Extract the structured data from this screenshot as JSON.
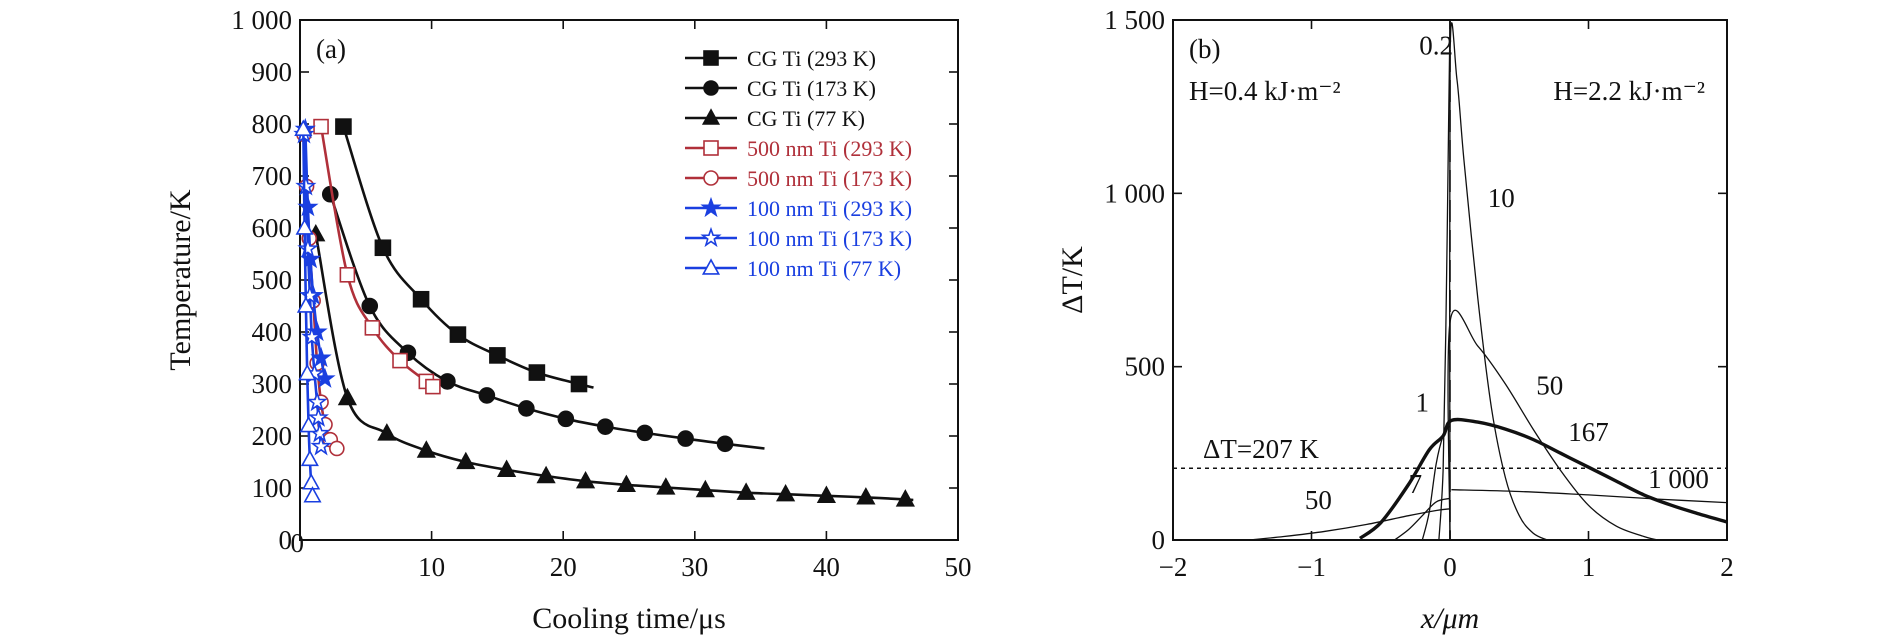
{
  "chart_data": [
    {
      "panel": "(a)",
      "type": "line",
      "xlabel": "Cooling time/μs",
      "ylabel": "Temperature/K",
      "xlim": [
        0,
        50
      ],
      "ylim": [
        0,
        1000
      ],
      "x_ticks": [
        {
          "value": 10,
          "label": "10"
        },
        {
          "value": 20,
          "label": "20"
        },
        {
          "value": 30,
          "label": "30"
        },
        {
          "value": 40,
          "label": "40"
        },
        {
          "value": 50,
          "label": "50"
        }
      ],
      "y_ticks": [
        {
          "value": 0,
          "label": "0"
        },
        {
          "value": 100,
          "label": "100"
        },
        {
          "value": 200,
          "label": "200"
        },
        {
          "value": 300,
          "label": "300"
        },
        {
          "value": 400,
          "label": "400"
        },
        {
          "value": 500,
          "label": "500"
        },
        {
          "value": 600,
          "label": "600"
        },
        {
          "value": 700,
          "label": "700"
        },
        {
          "value": 800,
          "label": "800"
        },
        {
          "value": 900,
          "label": "900"
        },
        {
          "value": 1000,
          "label": "1 000"
        }
      ],
      "legend_position": "top-right",
      "series": [
        {
          "name": "CG Ti (293 K)",
          "color": "#111111",
          "marker": "square",
          "filled": true,
          "points": [
            [
              3.3,
              795
            ],
            [
              6.3,
              562
            ],
            [
              9.2,
              463
            ],
            [
              12,
              395
            ],
            [
              15,
              355
            ],
            [
              18,
              322
            ],
            [
              21.2,
              300
            ],
            [
              22.3,
              293
            ]
          ]
        },
        {
          "name": "CG Ti (173 K)",
          "color": "#111111",
          "marker": "circle",
          "filled": true,
          "points": [
            [
              2.3,
              665
            ],
            [
              5.3,
              450
            ],
            [
              8.2,
              360
            ],
            [
              11.2,
              305
            ],
            [
              14.2,
              278
            ],
            [
              17.2,
              253
            ],
            [
              20.2,
              233
            ],
            [
              23.2,
              218
            ],
            [
              26.2,
              206
            ],
            [
              29.3,
              195
            ],
            [
              32.3,
              185
            ],
            [
              35.3,
              176
            ]
          ]
        },
        {
          "name": "CG Ti (77 K)",
          "color": "#111111",
          "marker": "triangle",
          "filled": true,
          "points": [
            [
              1.2,
              588
            ],
            [
              3.6,
              273
            ],
            [
              6.6,
              205
            ],
            [
              9.6,
              172
            ],
            [
              12.6,
              150
            ],
            [
              15.7,
              135
            ],
            [
              18.7,
              123
            ],
            [
              21.7,
              113
            ],
            [
              24.8,
              106
            ],
            [
              27.8,
              101
            ],
            [
              30.8,
              96
            ],
            [
              33.9,
              91
            ],
            [
              36.9,
              88
            ],
            [
              40,
              85
            ],
            [
              43,
              82
            ],
            [
              46,
              78
            ],
            [
              46.6,
              77
            ]
          ]
        },
        {
          "name": "500 nm Ti (293 K)",
          "color": "#b0303a",
          "marker": "square",
          "filled": false,
          "points": [
            [
              1.6,
              795
            ],
            [
              3.6,
              510
            ],
            [
              5.5,
              408
            ],
            [
              7.6,
              345
            ],
            [
              9.6,
              305
            ],
            [
              10.1,
              295
            ]
          ]
        },
        {
          "name": "500 nm Ti (173 K)",
          "color": "#b0303a",
          "marker": "circle",
          "filled": false,
          "points": [
            [
              0.3,
              780
            ],
            [
              0.5,
              680
            ],
            [
              0.7,
              580
            ],
            [
              1.0,
              460
            ],
            [
              1.3,
              340
            ],
            [
              1.6,
              265
            ],
            [
              1.9,
              222
            ],
            [
              2.3,
              193
            ],
            [
              2.8,
              176
            ]
          ]
        },
        {
          "name": "100 nm Ti (293 K)",
          "color": "#1a3fe0",
          "marker": "star",
          "filled": true,
          "points": [
            [
              0.4,
              790
            ],
            [
              0.6,
              640
            ],
            [
              0.8,
              540
            ],
            [
              1.0,
              470
            ],
            [
              1.3,
              400
            ],
            [
              1.6,
              350
            ],
            [
              1.9,
              310
            ]
          ]
        },
        {
          "name": "100 nm Ti (173 K)",
          "color": "#1a3fe0",
          "marker": "star",
          "filled": false,
          "points": [
            [
              0.3,
              780
            ],
            [
              0.45,
              680
            ],
            [
              0.6,
              560
            ],
            [
              0.75,
              470
            ],
            [
              0.9,
              390
            ],
            [
              1.1,
              320
            ],
            [
              1.3,
              265
            ],
            [
              1.4,
              235
            ],
            [
              1.5,
              205
            ],
            [
              1.6,
              180
            ]
          ]
        },
        {
          "name": "100 nm Ti (77 K)",
          "color": "#1a3fe0",
          "marker": "triangle",
          "filled": false,
          "points": [
            [
              0.25,
              790
            ],
            [
              0.35,
              600
            ],
            [
              0.45,
              450
            ],
            [
              0.55,
              320
            ],
            [
              0.65,
              220
            ],
            [
              0.75,
              155
            ],
            [
              0.85,
              110
            ],
            [
              0.95,
              85
            ]
          ]
        }
      ]
    },
    {
      "panel": "(b)",
      "type": "line",
      "xlabel": "x/μm",
      "ylabel": "ΔT/K",
      "xlim": [
        -2,
        2
      ],
      "ylim": [
        0,
        1500
      ],
      "x_ticks": [
        {
          "value": -2,
          "label": "−2"
        },
        {
          "value": -1,
          "label": "−1"
        },
        {
          "value": 0,
          "label": "0"
        },
        {
          "value": 1,
          "label": "1"
        },
        {
          "value": 2,
          "label": "2"
        }
      ],
      "y_ticks": [
        {
          "value": 0,
          "label": "0"
        },
        {
          "value": 500,
          "label": "500"
        },
        {
          "value": 1000,
          "label": "1 000"
        },
        {
          "value": 1500,
          "label": "1 500"
        }
      ],
      "threshold": {
        "value": 207,
        "label": "ΔT=207 K",
        "style": "dotted"
      },
      "divider_x": 0,
      "annotations_left": [
        "H=0.4 kJ·m⁻²"
      ],
      "annotations_right": [
        "H=2.2 kJ·m⁻²"
      ],
      "curve_labels": [
        {
          "text": "0.2",
          "x": -0.1,
          "y": 1400
        },
        {
          "text": "10",
          "x": 0.37,
          "y": 960
        },
        {
          "text": "50",
          "x": 0.72,
          "y": 420
        },
        {
          "text": "167",
          "x": 1.0,
          "y": 285
        },
        {
          "text": "1 000",
          "x": 1.65,
          "y": 150
        },
        {
          "text": "1",
          "x": -0.2,
          "y": 370
        },
        {
          "text": "7",
          "x": -0.25,
          "y": 135
        },
        {
          "text": "50",
          "x": -0.95,
          "y": 90
        }
      ],
      "series": [
        {
          "name": "0.2 (H=2.2)",
          "color": "#111111",
          "width": 1.3,
          "points": [
            [
              0,
              0
            ],
            [
              0.001,
              1400
            ],
            [
              0.05,
              1330
            ],
            [
              0.1,
              1100
            ],
            [
              0.2,
              700
            ],
            [
              0.3,
              380
            ],
            [
              0.4,
              180
            ],
            [
              0.5,
              70
            ],
            [
              0.6,
              20
            ],
            [
              0.7,
              0
            ]
          ]
        },
        {
          "name": "10 (H=2.2)",
          "color": "#111111",
          "width": 1.3,
          "points": [
            [
              0,
              0
            ],
            [
              0.001,
              630
            ],
            [
              0.2,
              560
            ],
            [
              0.4,
              450
            ],
            [
              0.6,
              320
            ],
            [
              0.8,
              200
            ],
            [
              1.0,
              100
            ],
            [
              1.2,
              40
            ],
            [
              1.4,
              10
            ],
            [
              1.5,
              0
            ]
          ]
        },
        {
          "name": "167 (H=2.2)",
          "color": "#111111",
          "width": 3.4,
          "points": [
            [
              -0.65,
              5
            ],
            [
              -0.5,
              50
            ],
            [
              -0.3,
              160
            ],
            [
              -0.15,
              260
            ],
            [
              -0.05,
              300
            ],
            [
              0.01,
              345
            ],
            [
              0.2,
              340
            ],
            [
              0.4,
              320
            ],
            [
              0.6,
              290
            ],
            [
              0.8,
              250
            ],
            [
              1.0,
              210
            ],
            [
              1.2,
              170
            ],
            [
              1.4,
              130
            ],
            [
              1.6,
              100
            ],
            [
              1.8,
              75
            ],
            [
              2.0,
              52
            ]
          ]
        },
        {
          "name": "1 000 (H=2.2)",
          "color": "#111111",
          "width": 1.3,
          "points": [
            [
              0.01,
              145
            ],
            [
              0.5,
              140
            ],
            [
              1.0,
              130
            ],
            [
              1.5,
              118
            ],
            [
              2.0,
              108
            ]
          ]
        },
        {
          "name": "0.2 (H=0.4)",
          "color": "#111111",
          "width": 1.3,
          "points": [
            [
              -0.08,
              0
            ],
            [
              -0.05,
              200
            ],
            [
              -0.03,
              600
            ],
            [
              -0.01,
              1200
            ],
            [
              0,
              1500
            ]
          ]
        },
        {
          "name": "1 (H=0.4)",
          "color": "#111111",
          "width": 1.3,
          "points": [
            [
              -0.2,
              0
            ],
            [
              -0.15,
              80
            ],
            [
              -0.1,
              220
            ],
            [
              -0.05,
              300
            ],
            [
              0,
              330
            ]
          ]
        },
        {
          "name": "7 (H=0.4)",
          "color": "#111111",
          "width": 1.3,
          "points": [
            [
              -0.4,
              0
            ],
            [
              -0.3,
              30
            ],
            [
              -0.2,
              70
            ],
            [
              -0.1,
              110
            ],
            [
              0,
              120
            ]
          ]
        },
        {
          "name": "50 (H=0.4)",
          "color": "#111111",
          "width": 1.3,
          "points": [
            [
              -1.45,
              0
            ],
            [
              -1.2,
              10
            ],
            [
              -0.9,
              25
            ],
            [
              -0.6,
              45
            ],
            [
              -0.3,
              70
            ],
            [
              -0.1,
              85
            ],
            [
              0,
              90
            ]
          ]
        }
      ]
    }
  ]
}
